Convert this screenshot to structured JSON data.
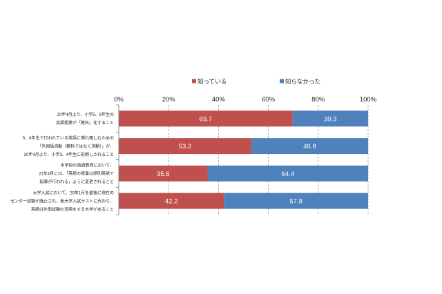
{
  "chart_data": {
    "type": "bar",
    "orientation": "horizontal",
    "stacked": "percent",
    "categories": [
      [
        "20年4月より、小学5、6年生の",
        "英語授業が「教科」化すること"
      ],
      [
        "5、6年生で行われている英語に慣れ親しむための",
        "「外国語活動（教科ではなく活動）」が、",
        "20年4月より、小学3、4年生に前倒しされること"
      ],
      [
        "中学校の英語教育において、",
        "21年4月には、「英語の授業は原則英語で",
        "指導が行われる」ように変更されること"
      ],
      [
        "大学入試において、20年1月を最後に現在の",
        "センター試験が廃止され、新大学入試テストに代わり、",
        "英語は外部試験の活用をする大学があること"
      ]
    ],
    "series": [
      {
        "name": "知っている",
        "values": [
          69.7,
          53.2,
          35.6,
          42.2
        ],
        "color": "#c0504d"
      },
      {
        "name": "知らなかった",
        "values": [
          30.3,
          46.8,
          64.4,
          57.8
        ],
        "color": "#4f81bd"
      }
    ],
    "xlim": [
      0,
      100
    ],
    "tick_values": [
      0,
      20,
      40,
      60,
      80,
      100
    ],
    "tick_labels": [
      "0%",
      "20%",
      "40%",
      "60%",
      "80%",
      "100%"
    ],
    "axis_position": "top",
    "grid": "vertical dashed",
    "legend_position": "top",
    "title": "",
    "xlabel": "",
    "ylabel": ""
  }
}
